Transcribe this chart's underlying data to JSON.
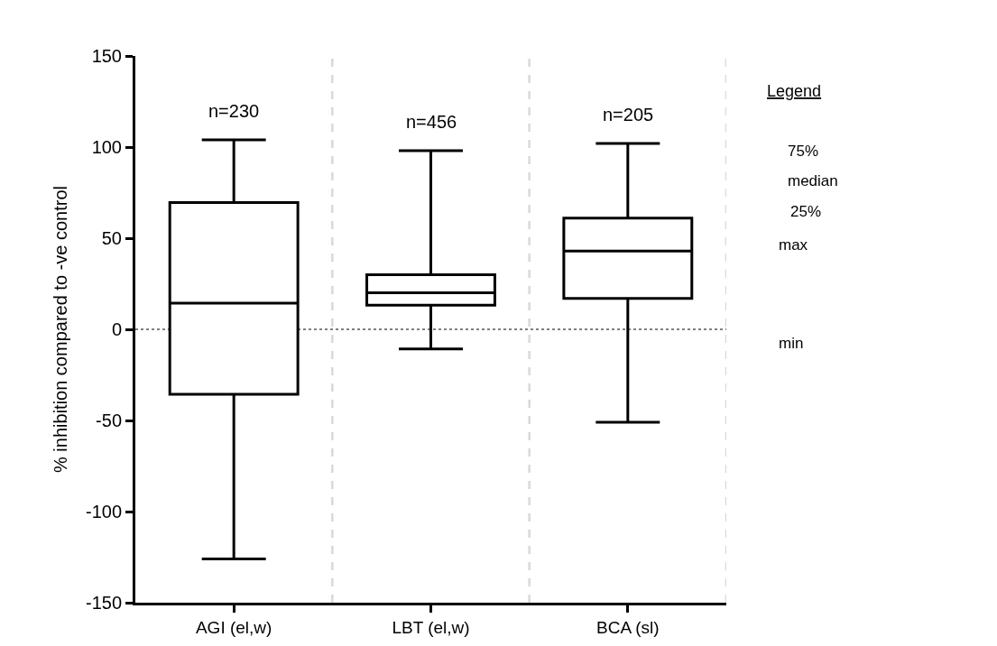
{
  "chart_data": {
    "type": "box",
    "ylabel": "% inhibition compared to -ve control",
    "categories": [
      "AGI (el,w)",
      "LBT (el,w)",
      "BCA (sl)"
    ],
    "boxes": [
      {
        "low": -126,
        "q1": -35.6,
        "median": 14.4,
        "q3": 69.5,
        "high": 104
      },
      {
        "low": -10.8,
        "q1": 13.3,
        "median": 20,
        "q3": 30,
        "high": 98
      },
      {
        "low": -51,
        "q1": 17,
        "median": 43,
        "q3": 61,
        "high": 102
      }
    ],
    "color": "#000000",
    "ylim": [
      -150,
      150
    ],
    "yticks": [
      -150,
      -100,
      -50,
      0,
      50,
      100,
      150
    ],
    "grid": false,
    "ref_lines": [
      {
        "axis": "y",
        "value": 0,
        "color": "#000000",
        "line_style": "dotted"
      }
    ],
    "annotations": [
      "n=230",
      "n=456",
      "n=205",
      "Legend",
      "75%",
      "median",
      "25%",
      "max",
      "min"
    ]
  }
}
